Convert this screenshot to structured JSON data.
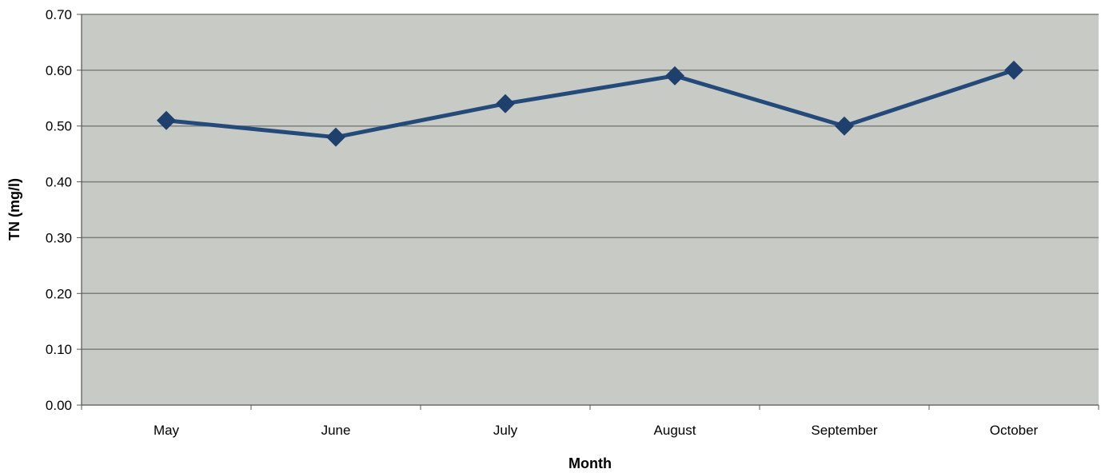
{
  "chart_data": {
    "type": "line",
    "categories": [
      "May",
      "June",
      "July",
      "August",
      "September",
      "October"
    ],
    "series": [
      {
        "values": [
          0.51,
          0.48,
          0.54,
          0.59,
          0.5,
          0.6
        ]
      }
    ],
    "title": "",
    "xlabel": "Month",
    "ylabel": "TN (mg/l)",
    "ylim": [
      0,
      0.7
    ],
    "yticks": [
      "0.00",
      "0.10",
      "0.20",
      "0.30",
      "0.40",
      "0.50",
      "0.60",
      "0.70"
    ],
    "grid": true,
    "legend": "none",
    "colors": {
      "plot_background": "#c8cac6",
      "gridline": "#7d7f7b",
      "series_line": "#244a7a",
      "marker": "#1f3f6c",
      "axis": "#555555"
    }
  }
}
